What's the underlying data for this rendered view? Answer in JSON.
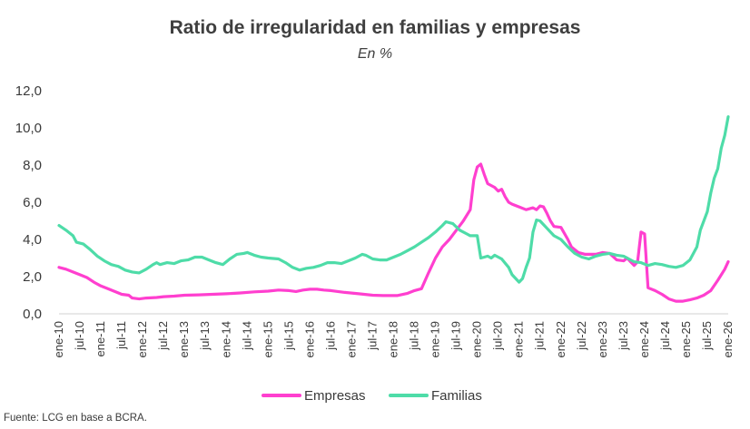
{
  "chart_data": {
    "type": "line",
    "title": "Ratio de irregularidad en familias y empresas",
    "subtitle": "En %",
    "source": "Fuente: LCG en base a BCRA.",
    "xlabel": "",
    "ylabel": "",
    "ylim": [
      0,
      12
    ],
    "yticks": [
      "0,0",
      "2,0",
      "4,0",
      "6,0",
      "8,0",
      "10,0",
      "12,0"
    ],
    "ytick_values": [
      0,
      2,
      4,
      6,
      8,
      10,
      12
    ],
    "xticks": [
      {
        "label": "ene-10",
        "month": 0
      },
      {
        "label": "jul-10",
        "month": 6
      },
      {
        "label": "ene-11",
        "month": 12
      },
      {
        "label": "jul-11",
        "month": 18
      },
      {
        "label": "ene-12",
        "month": 24
      },
      {
        "label": "jul-12",
        "month": 30
      },
      {
        "label": "ene-13",
        "month": 36
      },
      {
        "label": "jul-13",
        "month": 42
      },
      {
        "label": "ene-14",
        "month": 48
      },
      {
        "label": "jul-14",
        "month": 54
      },
      {
        "label": "ene-15",
        "month": 60
      },
      {
        "label": "jul-15",
        "month": 66
      },
      {
        "label": "ene-16",
        "month": 72
      },
      {
        "label": "jul-16",
        "month": 78
      },
      {
        "label": "ene-17",
        "month": 84
      },
      {
        "label": "jul-17",
        "month": 90
      },
      {
        "label": "ene-18",
        "month": 96
      },
      {
        "label": "jul-18",
        "month": 102
      },
      {
        "label": "ene-19",
        "month": 108
      },
      {
        "label": "jul-19",
        "month": 114
      },
      {
        "label": "ene-20",
        "month": 120
      },
      {
        "label": "jul-20",
        "month": 126
      },
      {
        "label": "ene-21",
        "month": 132
      },
      {
        "label": "jul-21",
        "month": 138
      },
      {
        "label": "ene-22",
        "month": 144
      },
      {
        "label": "jul-22",
        "month": 150
      },
      {
        "label": "ene-23",
        "month": 156
      },
      {
        "label": "jul-23",
        "month": 162
      },
      {
        "label": "ene-24",
        "month": 168
      },
      {
        "label": "jul-24",
        "month": 174
      },
      {
        "label": "ene-25",
        "month": 180
      },
      {
        "label": "jul-25",
        "month": 186
      },
      {
        "label": "ene-26",
        "month": 192
      }
    ],
    "xlim_months": [
      0,
      192
    ],
    "x_note": "x values are months elapsed since ene-10",
    "series": [
      {
        "name": "Empresas",
        "color": "#ff3fcf",
        "points": [
          [
            0,
            2.5
          ],
          [
            2,
            2.4
          ],
          [
            4,
            2.25
          ],
          [
            6,
            2.1
          ],
          [
            8,
            1.95
          ],
          [
            10,
            1.7
          ],
          [
            12,
            1.5
          ],
          [
            14,
            1.35
          ],
          [
            16,
            1.2
          ],
          [
            18,
            1.05
          ],
          [
            20,
            1.0
          ],
          [
            21,
            0.85
          ],
          [
            23,
            0.8
          ],
          [
            25,
            0.85
          ],
          [
            28,
            0.88
          ],
          [
            30,
            0.92
          ],
          [
            33,
            0.95
          ],
          [
            36,
            1.0
          ],
          [
            40,
            1.02
          ],
          [
            44,
            1.05
          ],
          [
            48,
            1.08
          ],
          [
            52,
            1.12
          ],
          [
            56,
            1.18
          ],
          [
            60,
            1.22
          ],
          [
            63,
            1.28
          ],
          [
            66,
            1.25
          ],
          [
            68,
            1.2
          ],
          [
            70,
            1.28
          ],
          [
            72,
            1.32
          ],
          [
            74,
            1.32
          ],
          [
            76,
            1.28
          ],
          [
            78,
            1.25
          ],
          [
            82,
            1.15
          ],
          [
            86,
            1.08
          ],
          [
            90,
            1.0
          ],
          [
            93,
            0.98
          ],
          [
            97,
            0.98
          ],
          [
            100,
            1.1
          ],
          [
            102,
            1.25
          ],
          [
            104,
            1.35
          ],
          [
            106,
            2.2
          ],
          [
            108,
            3.0
          ],
          [
            110,
            3.6
          ],
          [
            112,
            4.0
          ],
          [
            114,
            4.5
          ],
          [
            116,
            5.0
          ],
          [
            118,
            5.6
          ],
          [
            119,
            7.2
          ],
          [
            120,
            7.9
          ],
          [
            121,
            8.05
          ],
          [
            122,
            7.5
          ],
          [
            123,
            7.0
          ],
          [
            125,
            6.8
          ],
          [
            126,
            6.6
          ],
          [
            127,
            6.7
          ],
          [
            128,
            6.3
          ],
          [
            129,
            6.0
          ],
          [
            130,
            5.9
          ],
          [
            132,
            5.75
          ],
          [
            134,
            5.6
          ],
          [
            136,
            5.7
          ],
          [
            137,
            5.6
          ],
          [
            138,
            5.8
          ],
          [
            139,
            5.75
          ],
          [
            140,
            5.4
          ],
          [
            141,
            5.0
          ],
          [
            142,
            4.7
          ],
          [
            144,
            4.65
          ],
          [
            146,
            4.0
          ],
          [
            147,
            3.6
          ],
          [
            149,
            3.3
          ],
          [
            151,
            3.2
          ],
          [
            154,
            3.2
          ],
          [
            156,
            3.3
          ],
          [
            158,
            3.25
          ],
          [
            160,
            2.9
          ],
          [
            162,
            2.85
          ],
          [
            163,
            3.0
          ],
          [
            164,
            2.8
          ],
          [
            165,
            2.6
          ],
          [
            166,
            2.8
          ],
          [
            167,
            4.4
          ],
          [
            168,
            4.3
          ],
          [
            169,
            1.4
          ],
          [
            171,
            1.25
          ],
          [
            173,
            1.05
          ],
          [
            175,
            0.8
          ],
          [
            177,
            0.68
          ],
          [
            179,
            0.68
          ],
          [
            181,
            0.75
          ],
          [
            183,
            0.85
          ],
          [
            185,
            1.0
          ],
          [
            187,
            1.25
          ],
          [
            189,
            1.8
          ],
          [
            191,
            2.4
          ],
          [
            192,
            2.8
          ]
        ]
      },
      {
        "name": "Familias",
        "color": "#4edca8",
        "points": [
          [
            0,
            4.75
          ],
          [
            2,
            4.5
          ],
          [
            4,
            4.2
          ],
          [
            5,
            3.85
          ],
          [
            7,
            3.75
          ],
          [
            9,
            3.45
          ],
          [
            11,
            3.1
          ],
          [
            13,
            2.85
          ],
          [
            15,
            2.65
          ],
          [
            17,
            2.55
          ],
          [
            19,
            2.35
          ],
          [
            21,
            2.25
          ],
          [
            23,
            2.2
          ],
          [
            25,
            2.4
          ],
          [
            27,
            2.65
          ],
          [
            28,
            2.75
          ],
          [
            29,
            2.65
          ],
          [
            31,
            2.75
          ],
          [
            33,
            2.7
          ],
          [
            35,
            2.85
          ],
          [
            37,
            2.9
          ],
          [
            39,
            3.05
          ],
          [
            41,
            3.05
          ],
          [
            43,
            2.9
          ],
          [
            45,
            2.75
          ],
          [
            47,
            2.65
          ],
          [
            49,
            2.95
          ],
          [
            51,
            3.2
          ],
          [
            53,
            3.25
          ],
          [
            54,
            3.3
          ],
          [
            56,
            3.15
          ],
          [
            58,
            3.05
          ],
          [
            60,
            3.0
          ],
          [
            63,
            2.95
          ],
          [
            65,
            2.75
          ],
          [
            67,
            2.5
          ],
          [
            69,
            2.35
          ],
          [
            71,
            2.45
          ],
          [
            73,
            2.5
          ],
          [
            75,
            2.6
          ],
          [
            77,
            2.75
          ],
          [
            79,
            2.75
          ],
          [
            81,
            2.7
          ],
          [
            83,
            2.85
          ],
          [
            85,
            3.0
          ],
          [
            87,
            3.2
          ],
          [
            88,
            3.15
          ],
          [
            90,
            2.95
          ],
          [
            92,
            2.9
          ],
          [
            94,
            2.9
          ],
          [
            96,
            3.05
          ],
          [
            98,
            3.2
          ],
          [
            100,
            3.4
          ],
          [
            102,
            3.6
          ],
          [
            104,
            3.85
          ],
          [
            106,
            4.1
          ],
          [
            108,
            4.4
          ],
          [
            110,
            4.75
          ],
          [
            111,
            4.95
          ],
          [
            113,
            4.85
          ],
          [
            115,
            4.5
          ],
          [
            117,
            4.3
          ],
          [
            118,
            4.2
          ],
          [
            120,
            4.2
          ],
          [
            121,
            3.0
          ],
          [
            122,
            3.05
          ],
          [
            123,
            3.1
          ],
          [
            124,
            3.0
          ],
          [
            125,
            3.15
          ],
          [
            127,
            2.95
          ],
          [
            129,
            2.5
          ],
          [
            130,
            2.1
          ],
          [
            132,
            1.7
          ],
          [
            133,
            1.9
          ],
          [
            134,
            2.5
          ],
          [
            135,
            3.0
          ],
          [
            136,
            4.4
          ],
          [
            137,
            5.05
          ],
          [
            138,
            5.0
          ],
          [
            140,
            4.6
          ],
          [
            142,
            4.2
          ],
          [
            144,
            4.0
          ],
          [
            146,
            3.6
          ],
          [
            148,
            3.25
          ],
          [
            150,
            3.05
          ],
          [
            152,
            2.95
          ],
          [
            154,
            3.1
          ],
          [
            156,
            3.2
          ],
          [
            158,
            3.25
          ],
          [
            160,
            3.15
          ],
          [
            162,
            3.1
          ],
          [
            163,
            3.0
          ],
          [
            165,
            2.8
          ],
          [
            167,
            2.75
          ],
          [
            169,
            2.6
          ],
          [
            171,
            2.7
          ],
          [
            173,
            2.65
          ],
          [
            175,
            2.55
          ],
          [
            177,
            2.5
          ],
          [
            179,
            2.6
          ],
          [
            181,
            2.9
          ],
          [
            183,
            3.6
          ],
          [
            184,
            4.5
          ],
          [
            186,
            5.5
          ],
          [
            187,
            6.5
          ],
          [
            188,
            7.3
          ],
          [
            189,
            7.8
          ],
          [
            190,
            8.9
          ],
          [
            191,
            9.6
          ],
          [
            192,
            10.6
          ]
        ]
      }
    ]
  }
}
